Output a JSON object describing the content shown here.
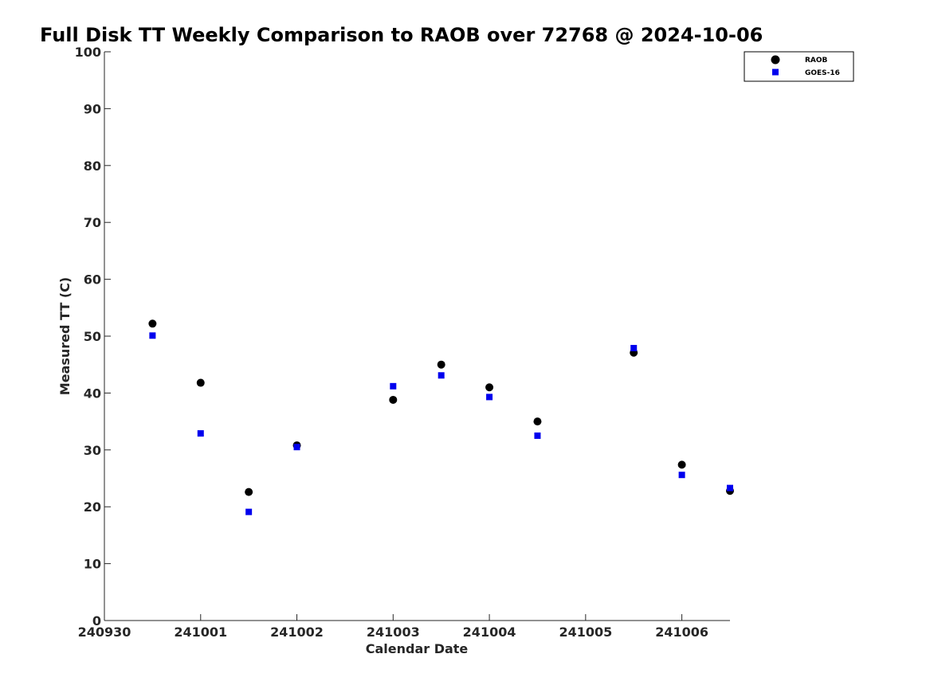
{
  "chart_data": {
    "type": "scatter",
    "title": "Full Disk TT Weekly Comparison to RAOB over 72768 @ 2024-10-06",
    "xlabel": "Calendar Date",
    "ylabel": "Measured TT (C)",
    "xlim": [
      "2024-09-30 00:00",
      "2024-10-06 12:00"
    ],
    "ylim": [
      0,
      100
    ],
    "x_tick_values": [
      "2024-09-30",
      "2024-10-01",
      "2024-10-02",
      "2024-10-03",
      "2024-10-04",
      "2024-10-05",
      "2024-10-06"
    ],
    "x_tick_labels": [
      "240930",
      "241001",
      "241002",
      "241003",
      "241004",
      "241005",
      "241006"
    ],
    "y_ticks": [
      0,
      10,
      20,
      30,
      40,
      50,
      60,
      70,
      80,
      90,
      100
    ],
    "grid": false,
    "legend_position": "top-right",
    "series": [
      {
        "name": "RAOB",
        "marker": "circle",
        "color": "#000000",
        "x": [
          "2024-09-30 12:00",
          "2024-10-01 00:00",
          "2024-10-01 12:00",
          "2024-10-02 00:00",
          "2024-10-03 00:00",
          "2024-10-03 12:00",
          "2024-10-04 00:00",
          "2024-10-04 12:00",
          "2024-10-05 12:00",
          "2024-10-06 00:00",
          "2024-10-06 12:00"
        ],
        "y": [
          52.2,
          41.8,
          22.6,
          30.8,
          38.8,
          45.0,
          41.0,
          35.0,
          47.1,
          27.4,
          22.8
        ]
      },
      {
        "name": "GOES-16",
        "marker": "square",
        "color": "#0000ee",
        "x": [
          "2024-09-30 12:00",
          "2024-10-01 00:00",
          "2024-10-01 12:00",
          "2024-10-02 00:00",
          "2024-10-03 00:00",
          "2024-10-03 12:00",
          "2024-10-04 00:00",
          "2024-10-04 12:00",
          "2024-10-05 12:00",
          "2024-10-06 00:00",
          "2024-10-06 12:00"
        ],
        "y": [
          50.1,
          32.9,
          19.1,
          30.5,
          41.2,
          43.1,
          39.3,
          32.5,
          47.9,
          25.6,
          23.3
        ]
      }
    ]
  }
}
